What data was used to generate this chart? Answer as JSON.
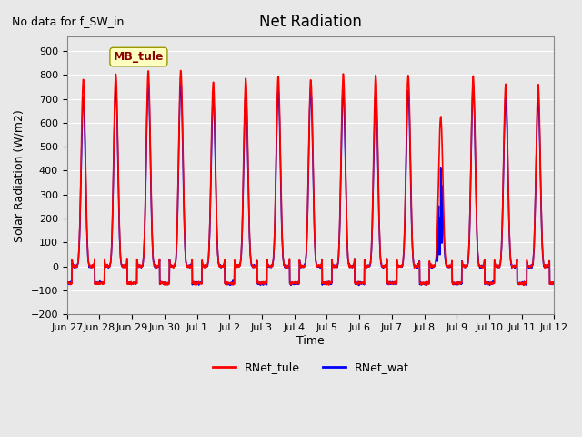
{
  "title": "Net Radiation",
  "subtitle": "No data for f_SW_in",
  "ylabel": "Solar Radiation (W/m2)",
  "xlabel": "Time",
  "ylim": [
    -200,
    960
  ],
  "yticks": [
    -200,
    -100,
    0,
    100,
    200,
    300,
    400,
    500,
    600,
    700,
    800,
    900
  ],
  "color_tule": "#FF0000",
  "color_wat": "#0000FF",
  "legend_label_tule": "RNet_tule",
  "legend_label_wat": "RNet_wat",
  "annotation_text": "MB_tule",
  "bg_color": "#E8E8E8",
  "n_days": 15,
  "tick_labels": [
    "Jun 27",
    "Jun 28",
    "Jun 29",
    "Jun 30",
    "Jul 1",
    "Jul 2",
    "Jul 3",
    "Jul 4",
    "Jul 5",
    "Jul 6",
    "Jul 7",
    "Jul 8",
    "Jul 9",
    "Jul 10",
    "Jul 11",
    "Jul 12"
  ],
  "day_peaks_tule": [
    780,
    805,
    815,
    820,
    770,
    785,
    795,
    780,
    805,
    800,
    800,
    625,
    790,
    760,
    760
  ],
  "day_peaks_wat": [
    710,
    750,
    760,
    765,
    710,
    720,
    735,
    740,
    735,
    730,
    735,
    415,
    750,
    705,
    700
  ],
  "night_val_tule": -70,
  "night_val_wat": -70,
  "samples_per_day": 144,
  "linewidth": 1.2
}
